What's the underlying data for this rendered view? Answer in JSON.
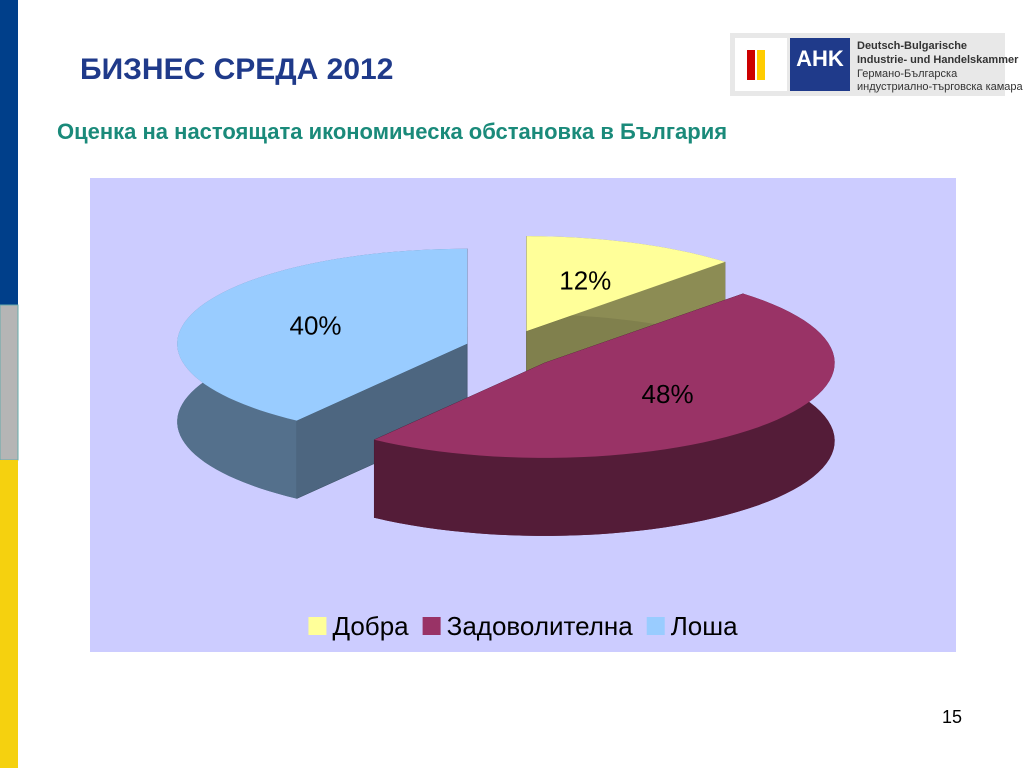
{
  "slide": {
    "title": "БИЗНЕС СРЕДА 2012",
    "page_number": 15,
    "logo": {
      "mark": "AHK",
      "lines": [
        "Deutsch-Bulgarische",
        "Industrie- und Handelskammer",
        "Германо-Българска",
        "индустриално-търговска камара"
      ]
    }
  },
  "chart_data": {
    "type": "pie",
    "title": "Оценка на настоящата икономическа обстановка в България",
    "categories": [
      "Добра",
      "Задоволителна",
      "Лоша"
    ],
    "values": [
      12,
      48,
      40
    ],
    "value_labels": [
      "12%",
      "48%",
      "40%"
    ],
    "colors": [
      "#ffff99",
      "#993366",
      "#99ccff"
    ],
    "legend": "bottom"
  }
}
